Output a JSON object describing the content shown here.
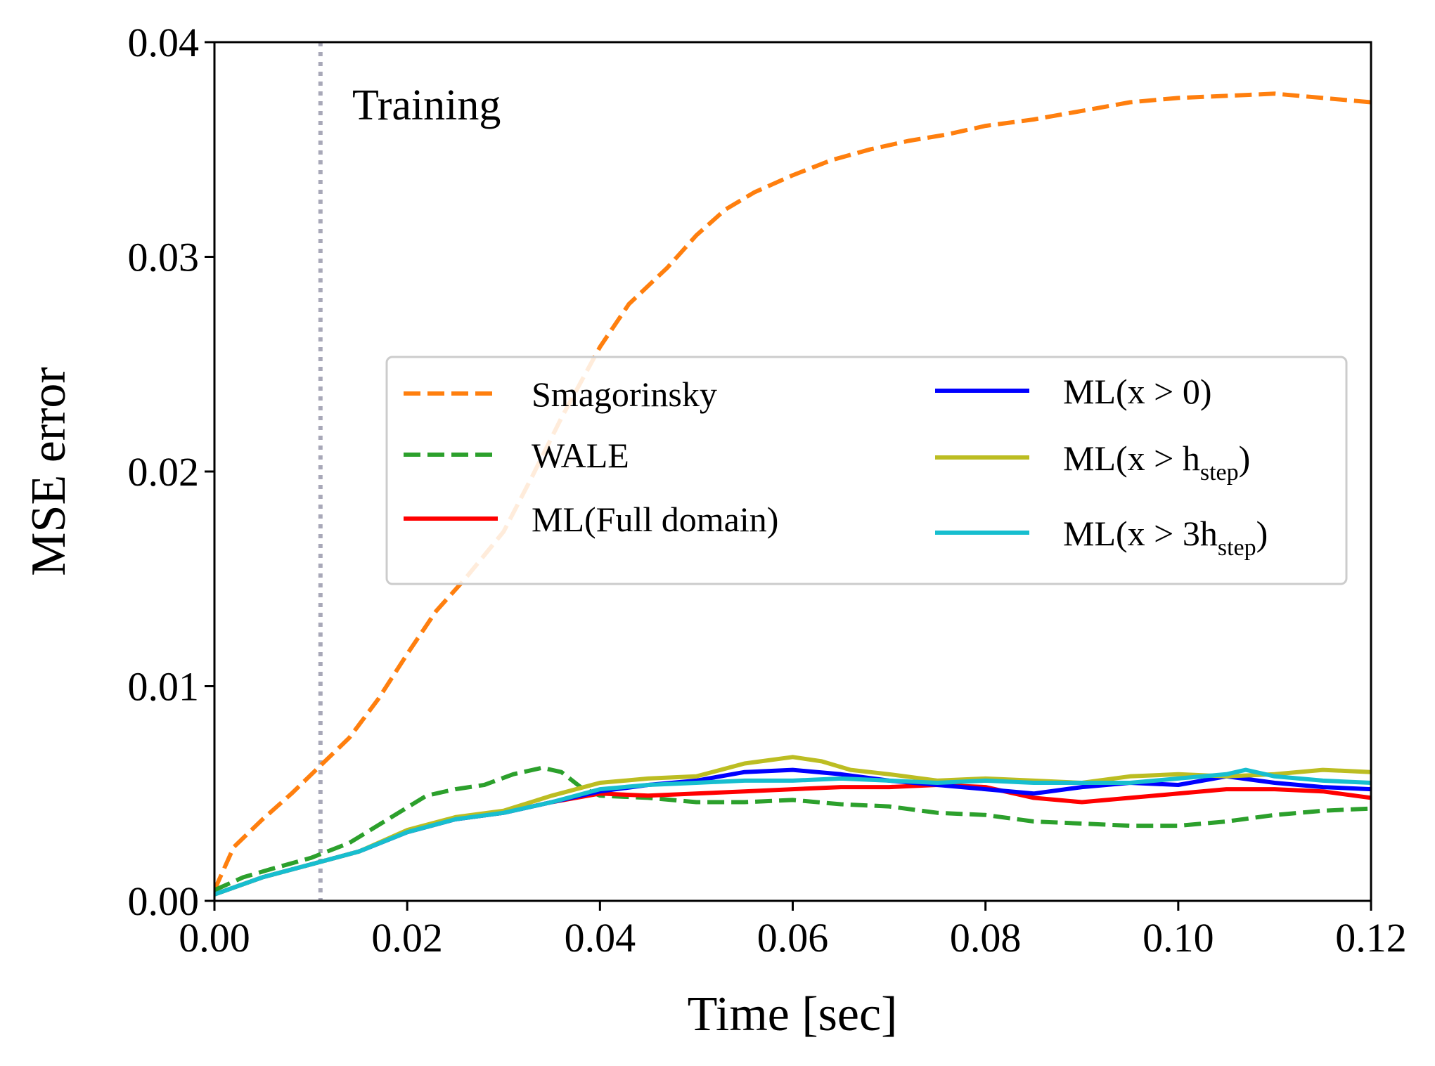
{
  "chart_data": {
    "type": "line",
    "title": "",
    "xlabel": "Time [sec]",
    "ylabel": "MSE error",
    "xlim": [
      0,
      0.12
    ],
    "ylim": [
      0,
      0.04
    ],
    "x_ticks": [
      "0.00",
      "0.02",
      "0.04",
      "0.06",
      "0.08",
      "0.10",
      "0.12"
    ],
    "y_ticks": [
      "0.00",
      "0.01",
      "0.02",
      "0.03",
      "0.04"
    ],
    "grid": false,
    "legend_position": "center-right",
    "annotations": [
      {
        "text": "Training",
        "x": 0.0143,
        "y": 0.0364
      }
    ],
    "vlines": [
      {
        "name": "training-end",
        "x": 0.011,
        "style": "dotted",
        "color": "#a8a8b8"
      }
    ],
    "series": [
      {
        "name": "Smagorinsky",
        "label": "Smagorinsky",
        "color": "#ff7f0e",
        "dash": true,
        "x": [
          0.0,
          0.002,
          0.005,
          0.008,
          0.011,
          0.014,
          0.017,
          0.02,
          0.023,
          0.026,
          0.03,
          0.033,
          0.036,
          0.04,
          0.043,
          0.047,
          0.05,
          0.053,
          0.056,
          0.06,
          0.064,
          0.068,
          0.072,
          0.076,
          0.08,
          0.085,
          0.09,
          0.095,
          0.1,
          0.105,
          0.11,
          0.115,
          0.12
        ],
        "y": [
          0.0005,
          0.0025,
          0.0038,
          0.005,
          0.0063,
          0.0076,
          0.0094,
          0.0115,
          0.0135,
          0.015,
          0.0172,
          0.0198,
          0.0225,
          0.0258,
          0.0278,
          0.0295,
          0.031,
          0.0322,
          0.033,
          0.0338,
          0.0345,
          0.035,
          0.0354,
          0.0357,
          0.0361,
          0.0364,
          0.0368,
          0.0372,
          0.0374,
          0.0375,
          0.0376,
          0.0374,
          0.0372
        ]
      },
      {
        "name": "WALE",
        "label": "WALE",
        "color": "#2ca02c",
        "dash": true,
        "x": [
          0.0,
          0.003,
          0.006,
          0.01,
          0.014,
          0.018,
          0.022,
          0.025,
          0.028,
          0.031,
          0.034,
          0.036,
          0.038,
          0.04,
          0.045,
          0.05,
          0.055,
          0.06,
          0.065,
          0.07,
          0.075,
          0.08,
          0.085,
          0.09,
          0.095,
          0.1,
          0.105,
          0.11,
          0.115,
          0.12
        ],
        "y": [
          0.0005,
          0.0011,
          0.0015,
          0.002,
          0.0027,
          0.0038,
          0.0049,
          0.0052,
          0.0054,
          0.0059,
          0.0062,
          0.006,
          0.0053,
          0.0049,
          0.0048,
          0.0046,
          0.0046,
          0.0047,
          0.0045,
          0.0044,
          0.0041,
          0.004,
          0.0037,
          0.0036,
          0.0035,
          0.0035,
          0.0037,
          0.004,
          0.0042,
          0.0043
        ]
      },
      {
        "name": "ML(Full domain)",
        "label": "ML(Full domain)",
        "color": "#ff0000",
        "dash": false,
        "x": [
          0.0,
          0.005,
          0.01,
          0.015,
          0.02,
          0.025,
          0.03,
          0.035,
          0.04,
          0.045,
          0.05,
          0.055,
          0.06,
          0.065,
          0.07,
          0.075,
          0.08,
          0.085,
          0.09,
          0.095,
          0.1,
          0.105,
          0.11,
          0.115,
          0.12
        ],
        "y": [
          0.0003,
          0.0011,
          0.0017,
          0.0023,
          0.0032,
          0.0038,
          0.0041,
          0.0046,
          0.005,
          0.0049,
          0.005,
          0.0051,
          0.0052,
          0.0053,
          0.0053,
          0.0054,
          0.0053,
          0.0048,
          0.0046,
          0.0048,
          0.005,
          0.0052,
          0.0052,
          0.0051,
          0.0048
        ]
      },
      {
        "name": "ML(x > 0)",
        "label": "ML(x > 0)",
        "color": "#0000ff",
        "dash": false,
        "x": [
          0.0,
          0.005,
          0.01,
          0.015,
          0.02,
          0.025,
          0.03,
          0.035,
          0.04,
          0.045,
          0.05,
          0.055,
          0.06,
          0.065,
          0.07,
          0.075,
          0.08,
          0.085,
          0.09,
          0.095,
          0.1,
          0.105,
          0.11,
          0.115,
          0.12
        ],
        "y": [
          0.0003,
          0.0011,
          0.0017,
          0.0023,
          0.0032,
          0.0038,
          0.0041,
          0.0046,
          0.0051,
          0.0054,
          0.0056,
          0.006,
          0.0061,
          0.0059,
          0.0056,
          0.0054,
          0.0052,
          0.005,
          0.0053,
          0.0055,
          0.0054,
          0.0058,
          0.0055,
          0.0053,
          0.0052
        ]
      },
      {
        "name": "ML(x > h_step)",
        "label": "ML(x >",
        "label_sub": "step",
        "label_main": "h",
        "label_close": ")",
        "color": "#bcbd22",
        "dash": false,
        "x": [
          0.0,
          0.005,
          0.01,
          0.015,
          0.02,
          0.025,
          0.03,
          0.035,
          0.04,
          0.045,
          0.05,
          0.055,
          0.06,
          0.063,
          0.066,
          0.07,
          0.075,
          0.08,
          0.085,
          0.09,
          0.095,
          0.1,
          0.105,
          0.11,
          0.115,
          0.12
        ],
        "y": [
          0.0003,
          0.0011,
          0.0017,
          0.0023,
          0.0033,
          0.0039,
          0.0042,
          0.0049,
          0.0055,
          0.0057,
          0.0058,
          0.0064,
          0.0067,
          0.0065,
          0.0061,
          0.0059,
          0.0056,
          0.0057,
          0.0056,
          0.0055,
          0.0058,
          0.0059,
          0.0058,
          0.0059,
          0.0061,
          0.006
        ]
      },
      {
        "name": "ML(x > 3h_step)",
        "label": "ML(x >",
        "label_main": "3h",
        "label_sub": "step",
        "label_close": ")",
        "color": "#17becf",
        "dash": false,
        "x": [
          0.0,
          0.005,
          0.01,
          0.015,
          0.02,
          0.025,
          0.03,
          0.035,
          0.04,
          0.045,
          0.05,
          0.055,
          0.06,
          0.065,
          0.07,
          0.075,
          0.08,
          0.085,
          0.09,
          0.095,
          0.1,
          0.105,
          0.107,
          0.11,
          0.115,
          0.12
        ],
        "y": [
          0.0003,
          0.0011,
          0.0017,
          0.0023,
          0.0032,
          0.0038,
          0.0041,
          0.0046,
          0.0052,
          0.0054,
          0.0055,
          0.0056,
          0.0056,
          0.0057,
          0.0056,
          0.0055,
          0.0056,
          0.0055,
          0.0055,
          0.0055,
          0.0057,
          0.0059,
          0.0061,
          0.0058,
          0.0056,
          0.0055
        ]
      }
    ]
  }
}
